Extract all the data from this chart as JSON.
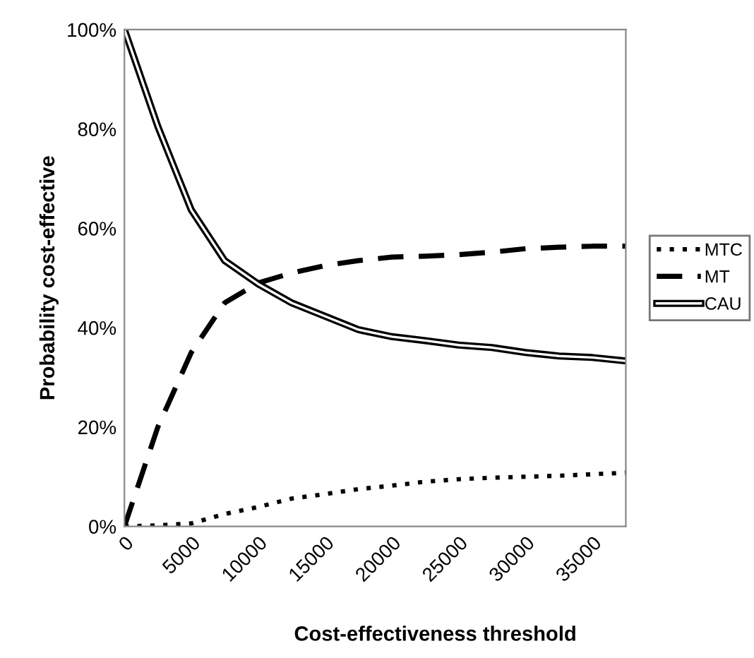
{
  "chart_data": {
    "type": "line",
    "xlabel": "Cost-effectiveness threshold",
    "ylabel": "Probability cost-effective",
    "x": [
      0,
      2500,
      5000,
      7500,
      10000,
      12500,
      15000,
      17500,
      20000,
      22500,
      25000,
      27500,
      30000,
      32500,
      35000,
      37500
    ],
    "xlim": [
      0,
      37500
    ],
    "xticks": [
      0,
      5000,
      10000,
      15000,
      20000,
      25000,
      30000,
      35000
    ],
    "ylim": [
      0,
      100
    ],
    "yticks": [
      {
        "value": 0,
        "label": "0%"
      },
      {
        "value": 20,
        "label": "20%"
      },
      {
        "value": 40,
        "label": "40%"
      },
      {
        "value": 60,
        "label": "60%"
      },
      {
        "value": 80,
        "label": "80%"
      },
      {
        "value": 100,
        "label": "100%"
      }
    ],
    "grid": false,
    "legend": "right",
    "marker": "none",
    "series": [
      {
        "name": "MTC",
        "color": "#000000",
        "line_style": "dotted",
        "values": [
          0,
          0.2,
          0.6,
          2.5,
          3.9,
          5.6,
          6.5,
          7.5,
          8.2,
          9,
          9.5,
          9.8,
          10,
          10.2,
          10.5,
          10.8
        ]
      },
      {
        "name": "MT",
        "color": "#000000",
        "line_style": "dashed",
        "values": [
          0,
          20,
          35,
          45,
          49,
          51,
          52.5,
          53.5,
          54.2,
          54.4,
          54.7,
          55.2,
          55.9,
          56.2,
          56.4,
          56.4
        ]
      },
      {
        "name": "CAU",
        "color": "#000000",
        "line_style": "solid",
        "values": [
          100,
          80.5,
          63.7,
          53.5,
          48.8,
          45,
          42.3,
          39.6,
          38.2,
          37.4,
          36.5,
          36,
          35,
          34.3,
          34,
          33.3
        ]
      }
    ]
  }
}
